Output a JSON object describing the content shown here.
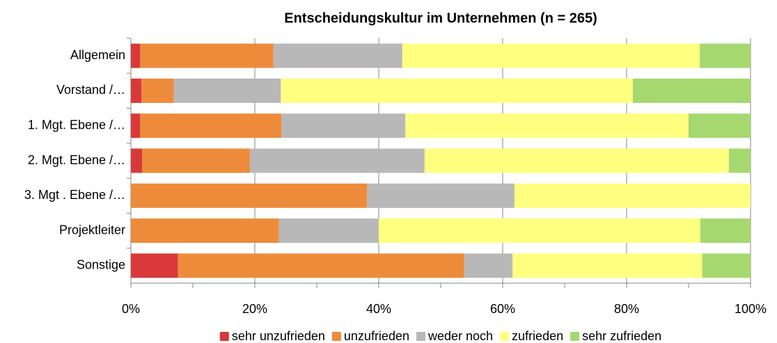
{
  "chart_data": {
    "type": "stacked_bar_horizontal",
    "title": "Entscheidungskultur im Unternehmen (n = 265)",
    "categories": [
      "Allgemein",
      "Vorstand /…",
      "1. Mgt. Ebene /…",
      "2. Mgt. Ebene /…",
      "3. Mgt . Ebene /…",
      "Projektleiter",
      "Sonstige"
    ],
    "series": [
      {
        "name": "sehr unzufrieden",
        "color": "#d9393a",
        "values": [
          1.5,
          1.7,
          1.5,
          1.8,
          0,
          0,
          7.6
        ]
      },
      {
        "name": "unzufrieden",
        "color": "#ed8b3b",
        "values": [
          21.5,
          5.2,
          22.8,
          17.4,
          38.1,
          23.9,
          46.2
        ]
      },
      {
        "name": "weder noch",
        "color": "#b8b8b8",
        "values": [
          20.8,
          17.3,
          20,
          28.2,
          23.8,
          16.1,
          7.8
        ]
      },
      {
        "name": "zufrieden",
        "color": "#ffff80",
        "values": [
          48,
          56.8,
          45.7,
          49.1,
          38.1,
          51.9,
          30.6
        ]
      },
      {
        "name": "sehr zufrieden",
        "color": "#a6d870",
        "values": [
          8.2,
          19,
          10,
          3.5,
          0,
          8.1,
          7.8
        ]
      }
    ],
    "xlim": [
      0,
      100
    ],
    "xticks": [
      {
        "value": 0,
        "label": "0%"
      },
      {
        "value": 20,
        "label": "20%"
      },
      {
        "value": 40,
        "label": "40%"
      },
      {
        "value": 60,
        "label": "60%"
      },
      {
        "value": 80,
        "label": "80%"
      },
      {
        "value": 100,
        "label": "100%"
      }
    ],
    "grid": true,
    "legend": "bottom"
  }
}
